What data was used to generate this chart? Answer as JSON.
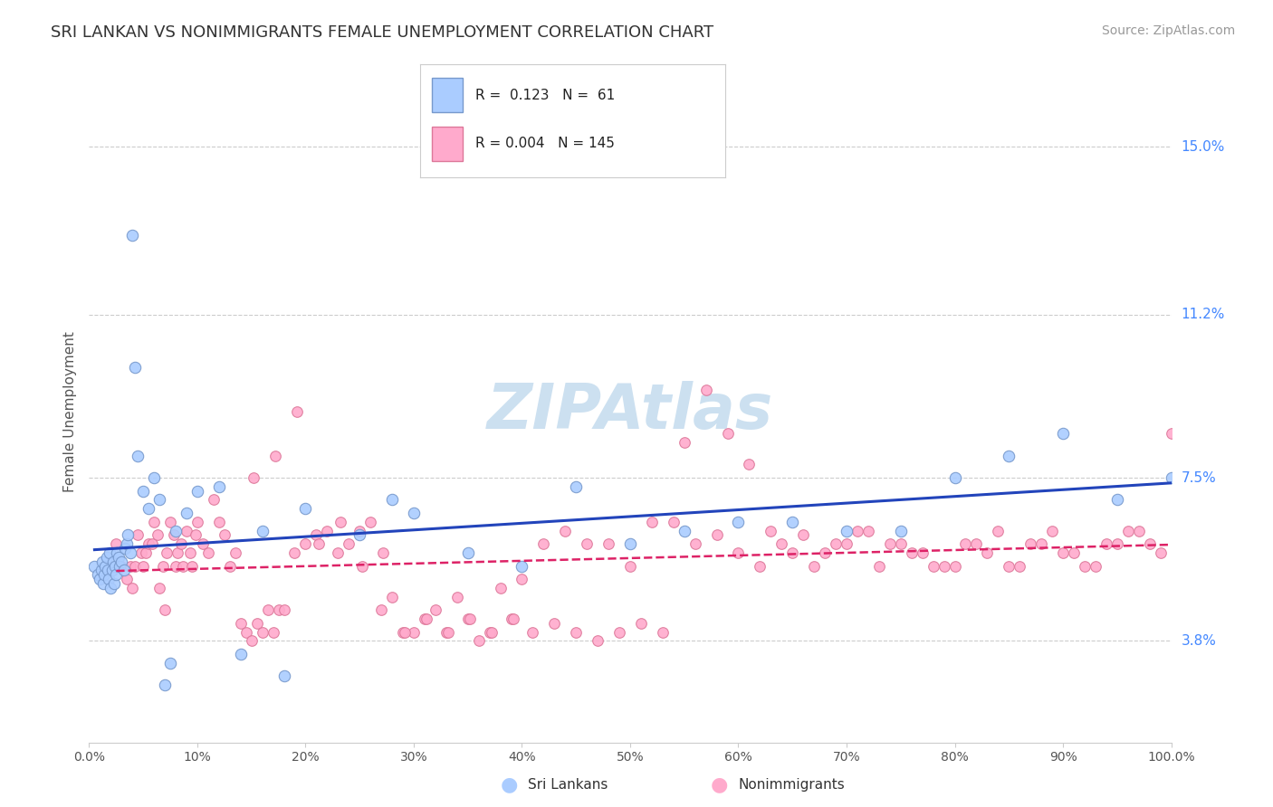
{
  "title": "SRI LANKAN VS NONIMMIGRANTS FEMALE UNEMPLOYMENT CORRELATION CHART",
  "source": "Source: ZipAtlas.com",
  "ylabel": "Female Unemployment",
  "ytick_labels": [
    "3.8%",
    "7.5%",
    "11.2%",
    "15.0%"
  ],
  "ytick_values": [
    0.038,
    0.075,
    0.112,
    0.15
  ],
  "title_color": "#333333",
  "source_color": "#999999",
  "right_ytick_color": "#4488ff",
  "sri_lankans_color": "#aaccff",
  "sri_lankans_edge": "#7799cc",
  "nonimmigrants_color": "#ffaacc",
  "nonimmigrants_edge": "#dd7799",
  "trend_line_sri_color": "#2244bb",
  "trend_line_non_color": "#dd2266",
  "watermark_color": "#cce0f0",
  "xmin": 0.0,
  "xmax": 1.0,
  "ymin": 0.015,
  "ymax": 0.165,
  "sri_lankans_x": [
    0.005,
    0.008,
    0.01,
    0.011,
    0.012,
    0.013,
    0.014,
    0.015,
    0.016,
    0.017,
    0.018,
    0.019,
    0.02,
    0.021,
    0.022,
    0.023,
    0.024,
    0.025,
    0.026,
    0.027,
    0.028,
    0.03,
    0.032,
    0.033,
    0.035,
    0.036,
    0.038,
    0.04,
    0.042,
    0.045,
    0.05,
    0.055,
    0.06,
    0.065,
    0.07,
    0.075,
    0.08,
    0.09,
    0.1,
    0.12,
    0.14,
    0.16,
    0.18,
    0.2,
    0.25,
    0.28,
    0.3,
    0.35,
    0.4,
    0.45,
    0.5,
    0.55,
    0.6,
    0.65,
    0.7,
    0.75,
    0.8,
    0.85,
    0.9,
    0.95,
    1.0
  ],
  "sri_lankans_y": [
    0.055,
    0.053,
    0.052,
    0.054,
    0.056,
    0.051,
    0.053,
    0.055,
    0.057,
    0.054,
    0.052,
    0.058,
    0.05,
    0.054,
    0.056,
    0.051,
    0.055,
    0.053,
    0.058,
    0.057,
    0.055,
    0.056,
    0.054,
    0.059,
    0.06,
    0.062,
    0.058,
    0.13,
    0.1,
    0.08,
    0.072,
    0.068,
    0.075,
    0.07,
    0.028,
    0.033,
    0.063,
    0.067,
    0.072,
    0.073,
    0.035,
    0.063,
    0.03,
    0.068,
    0.062,
    0.07,
    0.067,
    0.058,
    0.055,
    0.073,
    0.06,
    0.063,
    0.065,
    0.065,
    0.063,
    0.063,
    0.075,
    0.08,
    0.085,
    0.07,
    0.075
  ],
  "nonimmigrants_x": [
    0.025,
    0.03,
    0.035,
    0.038,
    0.04,
    0.042,
    0.045,
    0.048,
    0.05,
    0.052,
    0.055,
    0.058,
    0.06,
    0.063,
    0.065,
    0.068,
    0.07,
    0.072,
    0.075,
    0.078,
    0.08,
    0.082,
    0.085,
    0.087,
    0.09,
    0.093,
    0.095,
    0.098,
    0.1,
    0.105,
    0.11,
    0.115,
    0.12,
    0.125,
    0.13,
    0.135,
    0.14,
    0.145,
    0.15,
    0.155,
    0.16,
    0.165,
    0.17,
    0.175,
    0.18,
    0.19,
    0.2,
    0.21,
    0.22,
    0.23,
    0.24,
    0.25,
    0.26,
    0.27,
    0.28,
    0.29,
    0.3,
    0.32,
    0.34,
    0.36,
    0.38,
    0.4,
    0.42,
    0.44,
    0.46,
    0.48,
    0.5,
    0.52,
    0.54,
    0.56,
    0.58,
    0.6,
    0.62,
    0.64,
    0.66,
    0.68,
    0.7,
    0.72,
    0.74,
    0.76,
    0.78,
    0.8,
    0.82,
    0.84,
    0.86,
    0.88,
    0.9,
    0.92,
    0.94,
    0.96,
    0.98,
    1.0,
    0.55,
    0.57,
    0.59,
    0.61,
    0.63,
    0.65,
    0.67,
    0.69,
    0.71,
    0.73,
    0.75,
    0.77,
    0.79,
    0.81,
    0.83,
    0.85,
    0.87,
    0.89,
    0.91,
    0.93,
    0.95,
    0.97,
    0.99,
    0.31,
    0.33,
    0.35,
    0.37,
    0.39,
    0.41,
    0.43,
    0.45,
    0.47,
    0.49,
    0.51,
    0.53,
    0.152,
    0.172,
    0.192,
    0.212,
    0.232,
    0.252,
    0.272,
    0.292,
    0.312,
    0.332,
    0.352,
    0.372,
    0.392
  ],
  "nonimmigrants_y": [
    0.06,
    0.055,
    0.052,
    0.055,
    0.05,
    0.055,
    0.062,
    0.058,
    0.055,
    0.058,
    0.06,
    0.06,
    0.065,
    0.062,
    0.05,
    0.055,
    0.045,
    0.058,
    0.065,
    0.062,
    0.055,
    0.058,
    0.06,
    0.055,
    0.063,
    0.058,
    0.055,
    0.062,
    0.065,
    0.06,
    0.058,
    0.07,
    0.065,
    0.062,
    0.055,
    0.058,
    0.042,
    0.04,
    0.038,
    0.042,
    0.04,
    0.045,
    0.04,
    0.045,
    0.045,
    0.058,
    0.06,
    0.062,
    0.063,
    0.058,
    0.06,
    0.063,
    0.065,
    0.045,
    0.048,
    0.04,
    0.04,
    0.045,
    0.048,
    0.038,
    0.05,
    0.052,
    0.06,
    0.063,
    0.06,
    0.06,
    0.055,
    0.065,
    0.065,
    0.06,
    0.062,
    0.058,
    0.055,
    0.06,
    0.062,
    0.058,
    0.06,
    0.063,
    0.06,
    0.058,
    0.055,
    0.055,
    0.06,
    0.063,
    0.055,
    0.06,
    0.058,
    0.055,
    0.06,
    0.063,
    0.06,
    0.085,
    0.083,
    0.095,
    0.085,
    0.078,
    0.063,
    0.058,
    0.055,
    0.06,
    0.063,
    0.055,
    0.06,
    0.058,
    0.055,
    0.06,
    0.058,
    0.055,
    0.06,
    0.063,
    0.058,
    0.055,
    0.06,
    0.063,
    0.058,
    0.043,
    0.04,
    0.043,
    0.04,
    0.043,
    0.04,
    0.042,
    0.04,
    0.038,
    0.04,
    0.042,
    0.04,
    0.075,
    0.08,
    0.09,
    0.06,
    0.065,
    0.055,
    0.058,
    0.04,
    0.043,
    0.04,
    0.043,
    0.04,
    0.043
  ]
}
